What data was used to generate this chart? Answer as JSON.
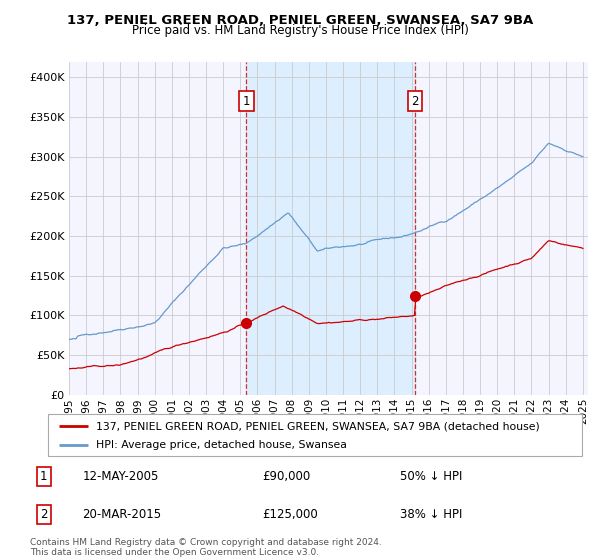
{
  "title": "137, PENIEL GREEN ROAD, PENIEL GREEN, SWANSEA, SA7 9BA",
  "subtitle": "Price paid vs. HM Land Registry's House Price Index (HPI)",
  "legend_line1": "137, PENIEL GREEN ROAD, PENIEL GREEN, SWANSEA, SA7 9BA (detached house)",
  "legend_line2": "HPI: Average price, detached house, Swansea",
  "annotation1_date": "12-MAY-2005",
  "annotation1_price": "£90,000",
  "annotation1_pct": "50% ↓ HPI",
  "annotation2_date": "20-MAR-2015",
  "annotation2_price": "£125,000",
  "annotation2_pct": "38% ↓ HPI",
  "footer": "Contains HM Land Registry data © Crown copyright and database right 2024.\nThis data is licensed under the Open Government Licence v3.0.",
  "red_color": "#cc0000",
  "blue_color": "#6699cc",
  "shade_color": "#ddeeff",
  "bg_color": "#f5f5ff",
  "grid_color": "#cccccc",
  "ylim": [
    0,
    420000
  ],
  "year_start": 1995,
  "year_end": 2025,
  "sale1_year": 2005.36,
  "sale1_price": 90000,
  "sale2_year": 2015.21,
  "sale2_price": 125000,
  "title_fontsize": 9.5,
  "subtitle_fontsize": 8.5
}
